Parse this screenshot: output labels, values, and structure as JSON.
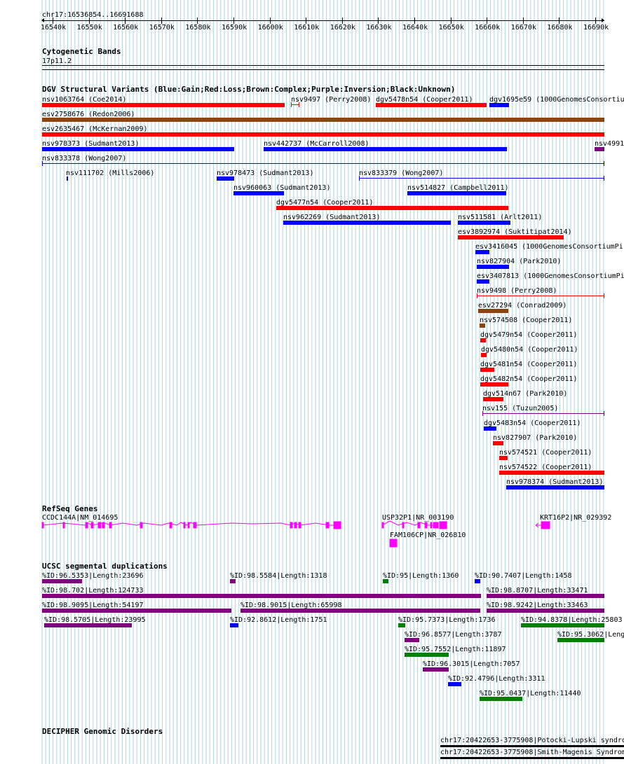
{
  "ruler": {
    "coords": "chr17:16536854..16691688",
    "ticks": [
      "16540k",
      "16550k",
      "16560k",
      "16570k",
      "16580k",
      "16590k",
      "16600k",
      "16610k",
      "16620k",
      "16630k",
      "16640k",
      "16650k",
      "16660k",
      "16670k",
      "16680k",
      "16690k"
    ]
  },
  "cytobands": {
    "title": "Cytogenetic Bands",
    "band": "17p11.2"
  },
  "dgv": {
    "title": "DGV Structural Variants (Blue:Gain;Red:Loss;Brown:Complex;Purple:Inversion;Black:Unknown)",
    "items": [
      {
        "label": "nsv1063764 (Coe2014)",
        "color": "red"
      },
      {
        "label": "nsv9497 (Perry2008)",
        "color": "red"
      },
      {
        "label": "dgv5478n54 (Cooper2011)",
        "color": "red"
      },
      {
        "label": "dgv1695e59 (1000GenomesConsortiu",
        "color": "blue"
      },
      {
        "label": "esv2758676 (Redon2006)",
        "color": "brown"
      },
      {
        "label": "esv2635467 (McKernan2009)",
        "color": "red"
      },
      {
        "label": "nsv978373 (Sudmant2013)",
        "color": "blue"
      },
      {
        "label": "nsv442737 (McCarroll2008)",
        "color": "blue"
      },
      {
        "label": "nsv4991",
        "color": "purple"
      },
      {
        "label": "nsv833378 (Wong2007)",
        "color": "blue"
      },
      {
        "label": "nsv111702 (Mills2006)",
        "color": "blue"
      },
      {
        "label": "nsv978473 (Sudmant2013)",
        "color": "blue"
      },
      {
        "label": "nsv833379 (Wong2007)",
        "color": "blue"
      },
      {
        "label": "nsv960063 (Sudmant2013)",
        "color": "blue"
      },
      {
        "label": "nsv514827 (Campbell2011)",
        "color": "blue"
      },
      {
        "label": "dgv5477n54 (Cooper2011)",
        "color": "red"
      },
      {
        "label": "nsv962269 (Sudmant2013)",
        "color": "blue"
      },
      {
        "label": "nsv511581 (Arlt2011)",
        "color": "blue"
      },
      {
        "label": "esv3892974 (Suktitipat2014)",
        "color": "red"
      },
      {
        "label": "esv3416045 (1000GenomesConsortiumPi",
        "color": "blue"
      },
      {
        "label": "nsv827904 (Park2010)",
        "color": "blue"
      },
      {
        "label": "esv3407813 (1000GenomesConsortiumPi",
        "color": "blue"
      },
      {
        "label": "nsv9498 (Perry2008)",
        "color": "red"
      },
      {
        "label": "esv27294 (Conrad2009)",
        "color": "brown"
      },
      {
        "label": "nsv574508 (Cooper2011)",
        "color": "brown"
      },
      {
        "label": "dgv5479n54 (Cooper2011)",
        "color": "red"
      },
      {
        "label": "dgv5480n54 (Cooper2011)",
        "color": "red"
      },
      {
        "label": "dgv5481n54 (Cooper2011)",
        "color": "red"
      },
      {
        "label": "dgv5482n54 (Cooper2011)",
        "color": "red"
      },
      {
        "label": "dgv514n67 (Park2010)",
        "color": "red"
      },
      {
        "label": "nsv155 (Tuzun2005)",
        "color": "purple"
      },
      {
        "label": "dgv5483n54 (Cooper2011)",
        "color": "blue"
      },
      {
        "label": "nsv827907 (Park2010)",
        "color": "red"
      },
      {
        "label": "nsv574521 (Cooper2011)",
        "color": "red"
      },
      {
        "label": "nsv574522 (Cooper2011)",
        "color": "red"
      },
      {
        "label": "nsv978374 (Sudmant2013)",
        "color": "blue"
      }
    ]
  },
  "refseq": {
    "title": "RefSeq Genes",
    "genes": [
      "CCDC144A|NM_014695",
      "USP32P1|NR_003190",
      "FAM106CP|NR_026810",
      "KRT16P2|NR_029392"
    ]
  },
  "segdups": {
    "title": "UCSC segmental duplications",
    "items": [
      {
        "label": "%ID:96.5353|Length:23696",
        "color": "purple"
      },
      {
        "label": "%ID:98.5584|Length:1318",
        "color": "purple"
      },
      {
        "label": "%ID:95|Length:1360",
        "color": "green"
      },
      {
        "label": "%ID:90.7407|Length:1458",
        "color": "blue"
      },
      {
        "label": "%ID:98.702|Length:124733",
        "color": "purple"
      },
      {
        "label": "%ID:98.8707|Length:33471",
        "color": "purple"
      },
      {
        "label": "%ID:98.9095|Length:54197",
        "color": "purple"
      },
      {
        "label": "%ID:98.9015|Length:65998",
        "color": "purple"
      },
      {
        "label": "%ID:98.9242|Length:33463",
        "color": "purple"
      },
      {
        "label": "%ID:98.5705|Length:23995",
        "color": "purple"
      },
      {
        "label": "%ID:92.8612|Length:1751",
        "color": "blue"
      },
      {
        "label": "%ID:95.7373|Length:1736",
        "color": "green"
      },
      {
        "label": "%ID:94.8378|Length:25803",
        "color": "green"
      },
      {
        "label": "%ID:96.8577|Length:3787",
        "color": "purple"
      },
      {
        "label": "%ID:95.3062|Lengt",
        "color": "green"
      },
      {
        "label": "%ID:95.7552|Length:11897",
        "color": "green"
      },
      {
        "label": "%ID:96.3015|Length:7057",
        "color": "purple"
      },
      {
        "label": "%ID:92.4796|Length:3311",
        "color": "blue"
      },
      {
        "label": "%ID:95.0437|Length:11440",
        "color": "green"
      }
    ]
  },
  "decipher": {
    "title": "DECIPHER Genomic Disorders",
    "items": [
      "chr17:20422653-3775908|Potocki-Lupski syndro",
      "chr17:20422653-3775908|Smith-Magenis Syndrom"
    ]
  },
  "colors": {
    "red": "#ff0000",
    "blue": "#0000ff",
    "brown": "#8b4513",
    "purple": "#800080",
    "green": "#008000",
    "magenta": "#ff00ff",
    "grid": "#aed6e1"
  }
}
